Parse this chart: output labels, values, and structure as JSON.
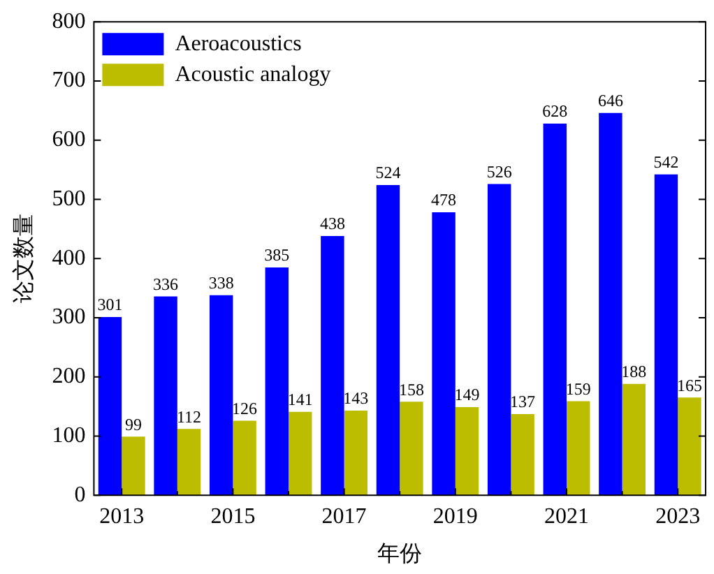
{
  "chart_data": {
    "type": "bar",
    "xlabel": "年份",
    "ylabel": "论文数量",
    "categories": [
      "2013",
      null,
      "2015",
      null,
      "2017",
      null,
      "2019",
      null,
      "2021",
      null,
      "2023"
    ],
    "series": [
      {
        "name": "Aeroacoustics",
        "color": "#0000ff",
        "values": [
          301,
          336,
          338,
          385,
          438,
          524,
          478,
          526,
          628,
          646,
          542
        ]
      },
      {
        "name": "Acoustic analogy",
        "color": "#bdbd00",
        "values": [
          99,
          112,
          126,
          141,
          143,
          158,
          149,
          137,
          159,
          188,
          165
        ]
      }
    ],
    "ylim": [
      0,
      800
    ],
    "yticks": [
      0,
      100,
      200,
      300,
      400,
      500,
      600,
      700,
      800
    ],
    "grid": false,
    "legend": "top left",
    "data_labels": true
  }
}
